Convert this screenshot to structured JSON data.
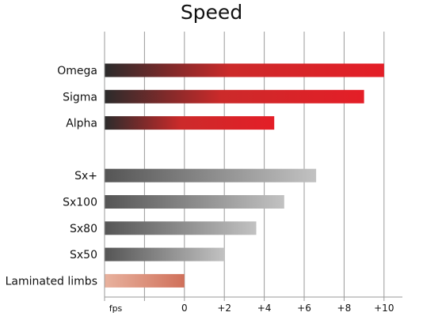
{
  "chart_data": {
    "type": "bar",
    "orientation": "horizontal",
    "title": "Speed",
    "xlabel": "",
    "ylabel": "",
    "x_unit": "fps",
    "xlim": [
      -4,
      11
    ],
    "xticks": [
      {
        "value": -4,
        "label": ""
      },
      {
        "value": -2,
        "label": ""
      },
      {
        "value": 0,
        "label": "0"
      },
      {
        "value": 2,
        "label": "+2"
      },
      {
        "value": 4,
        "label": "+4"
      },
      {
        "value": 6,
        "label": "+6"
      },
      {
        "value": 8,
        "label": "+8"
      },
      {
        "value": 10,
        "label": "+10"
      }
    ],
    "grid": true,
    "bar_start": -4,
    "categories": [
      {
        "label": "Omega",
        "value": 10.0,
        "style": "red"
      },
      {
        "label": "Sigma",
        "value": 9.0,
        "style": "red"
      },
      {
        "label": "Alpha",
        "value": 4.5,
        "style": "red"
      },
      {
        "label": "",
        "value": null,
        "style": "gap"
      },
      {
        "label": "Sx+",
        "value": 6.6,
        "style": "gray"
      },
      {
        "label": "Sx100",
        "value": 5.0,
        "style": "gray"
      },
      {
        "label": "Sx80",
        "value": 3.6,
        "style": "gray"
      },
      {
        "label": "Sx50",
        "value": 2.0,
        "style": "gray"
      },
      {
        "label": "Laminated limbs",
        "value": 0.0,
        "style": "salmon"
      }
    ]
  },
  "colors": {
    "red_start": "#2b2b2b",
    "red_mid": "#cc2a2a",
    "red_end": "#e41e27",
    "gray_start": "#555555",
    "gray_end": "#c2c2c2",
    "salmon_start": "#e8b29e",
    "salmon_end": "#d0705a",
    "grid": "#9a9a9a",
    "axis": "#9a9a9a",
    "text": "#111111"
  }
}
